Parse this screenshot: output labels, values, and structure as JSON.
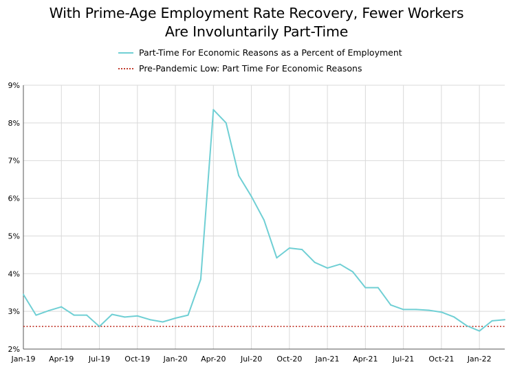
{
  "title_line1": "With Prime-Age Employment Rate Recovery, Fewer Workers",
  "title_line2": "Are Involuntarily Part-Time",
  "legend": [
    {
      "label": "Part-Time For Economic Reasons as a Percent of Employment",
      "color": "#6FCFD4",
      "style": "solid"
    },
    {
      "label": "Pre-Pandemic Low: Part Time For Economic Reasons",
      "color": "#C0392B",
      "style": "dotted"
    }
  ],
  "chart_data": {
    "type": "line",
    "x": [
      "Jan-19",
      "Feb-19",
      "Mar-19",
      "Apr-19",
      "May-19",
      "Jun-19",
      "Jul-19",
      "Aug-19",
      "Sep-19",
      "Oct-19",
      "Nov-19",
      "Dec-19",
      "Jan-20",
      "Feb-20",
      "Mar-20",
      "Apr-20",
      "May-20",
      "Jun-20",
      "Jul-20",
      "Aug-20",
      "Sep-20",
      "Oct-20",
      "Nov-20",
      "Dec-20",
      "Jan-21",
      "Feb-21",
      "Mar-21",
      "Apr-21",
      "May-21",
      "Jun-21",
      "Jul-21",
      "Aug-21",
      "Sep-21",
      "Oct-21",
      "Nov-21",
      "Dec-21",
      "Jan-22",
      "Feb-22",
      "Mar-22"
    ],
    "xticks": [
      "Jan-19",
      "Apr-19",
      "Jul-19",
      "Oct-19",
      "Jan-20",
      "Apr-20",
      "Jul-20",
      "Oct-20",
      "Jan-21",
      "Apr-21",
      "Jul-21",
      "Oct-21",
      "Jan-22"
    ],
    "series": [
      {
        "name": "Part-Time For Economic Reasons as a Percent of Employment",
        "color": "#6FCFD4",
        "values": [
          3.45,
          2.9,
          3.02,
          3.12,
          2.9,
          2.9,
          2.6,
          2.92,
          2.85,
          2.88,
          2.78,
          2.72,
          2.82,
          2.9,
          3.85,
          8.35,
          8.0,
          6.6,
          6.05,
          5.42,
          4.42,
          4.68,
          4.64,
          4.3,
          4.15,
          4.25,
          4.05,
          3.63,
          3.63,
          3.17,
          3.05,
          3.05,
          3.03,
          2.98,
          2.85,
          2.62,
          2.48,
          2.75,
          2.78
        ]
      }
    ],
    "reference_line": {
      "name": "Pre-Pandemic Low: Part Time For Economic Reasons",
      "value": 2.6,
      "color": "#C0392B"
    },
    "ylim": [
      2,
      9
    ],
    "yticks": [
      "2%",
      "3%",
      "4%",
      "5%",
      "6%",
      "7%",
      "8%",
      "9%"
    ],
    "grid": true,
    "legend_position": "top-center"
  }
}
